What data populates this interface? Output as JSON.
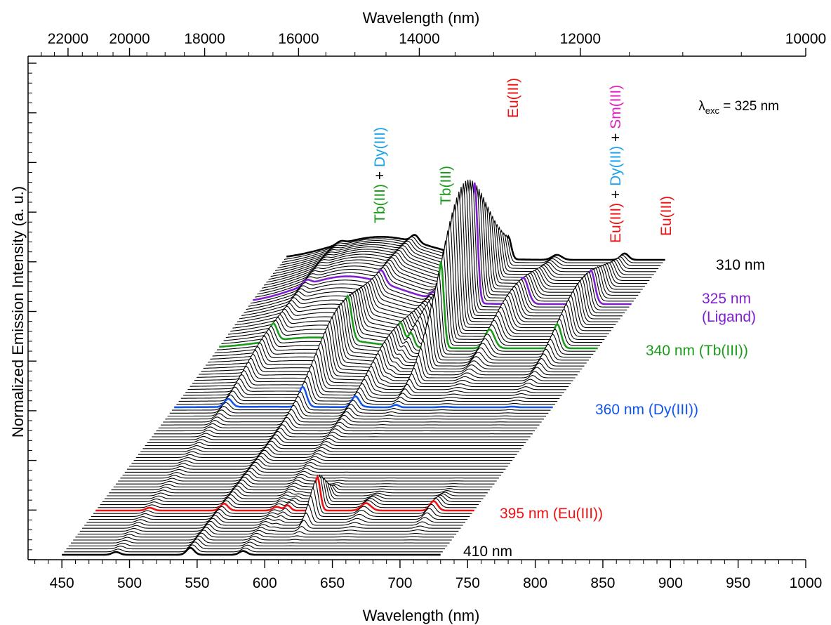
{
  "chart_data": {
    "type": "waterfall-line",
    "x_axis_bottom": {
      "label": "Wavelength (nm)",
      "range": [
        425,
        1000
      ],
      "ticks": [
        "450",
        "500",
        "550",
        "600",
        "650",
        "700",
        "750",
        "800",
        "850",
        "900",
        "950",
        "1000"
      ]
    },
    "x_axis_top": {
      "label": "Wavelength (nm)",
      "scale": "reciprocal",
      "ticks": [
        "22000",
        "20000",
        "18000",
        "16000",
        "14000",
        "12000",
        "10000"
      ]
    },
    "y_axis": {
      "label": "Normalized Emission Intensity (a. u.)",
      "tick_labels": "none"
    },
    "excitation_label": {
      "symbol": "λ",
      "subscript": "exc",
      "text": " = 325 nm"
    },
    "excitation_range_nm": [
      310,
      410
    ],
    "emission_range_nm": [
      450,
      730
    ],
    "highlighted_traces": [
      {
        "excitation": 310,
        "label": "310 nm",
        "color": "#000000"
      },
      {
        "excitation": 325,
        "label": "325 nm",
        "label2": "(Ligand)",
        "color": "#7f1fd1"
      },
      {
        "excitation": 340,
        "label": "340 nm (Tb(III))",
        "color": "#1a9a1a"
      },
      {
        "excitation": 360,
        "label": "360 nm (Dy(III))",
        "color": "#1155ee"
      },
      {
        "excitation": 395,
        "label": "395 nm (Eu(III))",
        "color": "#ee1111"
      },
      {
        "excitation": 410,
        "label": "410 nm",
        "color": "#000000"
      }
    ],
    "emission_peaks_nm": [
      {
        "position": 490,
        "species": "Tb(III) + Dy(III)"
      },
      {
        "position": 545,
        "species": "Tb(III)"
      },
      {
        "position": 613,
        "species": "Eu(III)"
      },
      {
        "position": 650,
        "species": "Eu(III) + Dy(III) + Sm(III)"
      },
      {
        "position": 700,
        "species": "Eu(III)"
      }
    ],
    "peak_annotations": [
      {
        "parts": [
          {
            "text": "Tb(III)",
            "color": "#1a9a1a"
          },
          {
            "text": " + ",
            "color": "#000000"
          },
          {
            "text": "Dy(III)",
            "color": "#1aa0e8"
          }
        ]
      },
      {
        "parts": [
          {
            "text": "Tb(III)",
            "color": "#1a9a1a"
          }
        ]
      },
      {
        "parts": [
          {
            "text": "Eu(III)",
            "color": "#ee1111"
          }
        ]
      },
      {
        "parts": [
          {
            "text": "Eu(III)",
            "color": "#ee1111"
          },
          {
            "text": " + ",
            "color": "#000000"
          },
          {
            "text": "Dy(III)",
            "color": "#1aa0e8"
          },
          {
            "text": " + ",
            "color": "#000000"
          },
          {
            "text": "Sm(III)",
            "color": "#e020c0"
          }
        ]
      },
      {
        "parts": [
          {
            "text": "Eu(III)",
            "color": "#ee1111"
          }
        ]
      }
    ]
  }
}
